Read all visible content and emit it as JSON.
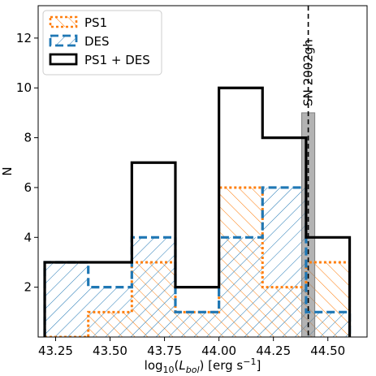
{
  "chart_data": {
    "type": "histogram",
    "xlabel": "log10(Lbol) [erg s−1]",
    "xlabel_parts": {
      "pre": "log",
      "sub1": "10",
      "mid1": "(",
      "ital": "L",
      "sub2": "bol",
      "mid2": ") [erg s",
      "sup": "−1",
      "post": "]"
    },
    "ylabel": "N",
    "xlim": [
      43.17,
      44.68
    ],
    "ylim": [
      0,
      13.3
    ],
    "xticks": [
      43.25,
      43.5,
      43.75,
      44.0,
      44.25,
      44.5
    ],
    "xtick_labels": [
      "43.25",
      "43.50",
      "43.75",
      "44.00",
      "44.25",
      "44.50"
    ],
    "yticks": [
      2,
      4,
      6,
      8,
      10,
      12
    ],
    "ytick_labels": [
      "2",
      "4",
      "6",
      "8",
      "10",
      "12"
    ],
    "bin_edges": [
      43.2,
      43.4,
      43.6,
      43.8,
      44.0,
      44.2,
      44.4,
      44.6
    ],
    "series": [
      {
        "name": "PS1",
        "counts": [
          0,
          1,
          3,
          1,
          6,
          2,
          3
        ],
        "color": "#ff7f0e",
        "linestyle": "dotted",
        "hatch": "\\\\"
      },
      {
        "name": "DES",
        "counts": [
          3,
          2,
          4,
          1,
          4,
          6,
          1
        ],
        "color": "#1f77b4",
        "linestyle": "dashed",
        "hatch": "//"
      },
      {
        "name": "PS1 + DES",
        "counts": [
          3,
          3,
          7,
          2,
          10,
          8,
          4
        ],
        "color": "#000000",
        "linestyle": "solid",
        "hatch": ""
      }
    ],
    "reference": {
      "label": "SN 2002gh",
      "x": 44.41,
      "band": [
        44.38,
        44.44
      ],
      "band_height": 9
    },
    "legend_position": "upper-left"
  }
}
